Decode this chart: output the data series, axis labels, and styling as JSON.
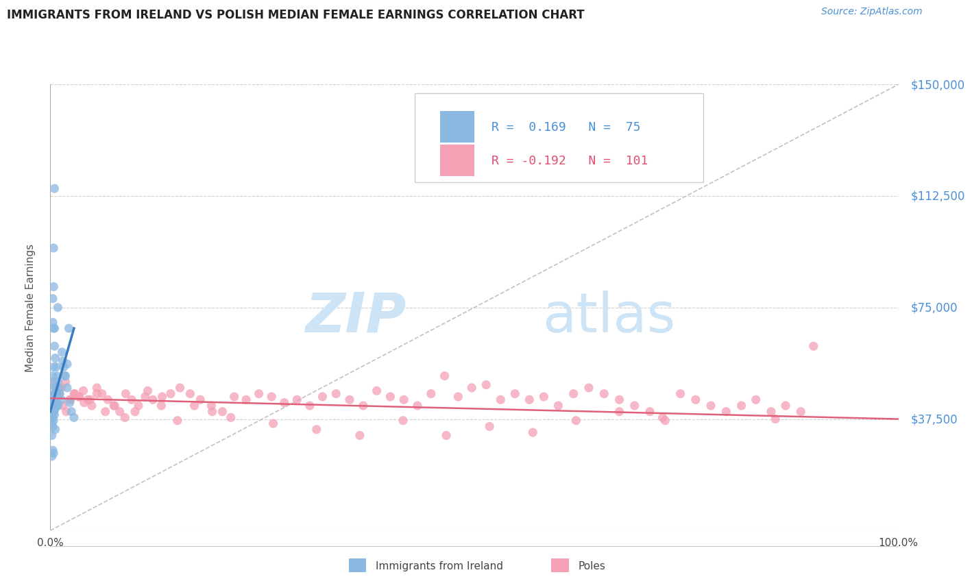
{
  "title": "IMMIGRANTS FROM IRELAND VS POLISH MEDIAN FEMALE EARNINGS CORRELATION CHART",
  "source": "Source: ZipAtlas.com",
  "ylabel": "Median Female Earnings",
  "xlim": [
    0.0,
    1.0
  ],
  "ylim": [
    0,
    150000
  ],
  "yticks": [
    37500,
    75000,
    112500,
    150000
  ],
  "ytick_labels": [
    "$37,500",
    "$75,000",
    "$112,500",
    "$150,000"
  ],
  "ireland_color": "#8ab8e0",
  "ireland_color_dark": "#3a7abf",
  "poles_color": "#f4a0b5",
  "poles_color_dark": "#e0607a",
  "legend_ireland_label": "Immigrants from Ireland",
  "legend_poles_label": "Poles",
  "ireland_R": 0.169,
  "ireland_N": 75,
  "poles_R": -0.192,
  "poles_N": 101,
  "accent_blue": "#4a90d9",
  "accent_pink": "#e05070",
  "background_color": "#ffffff",
  "grid_color": "#cccccc",
  "title_color": "#222222",
  "watermark_zip": "ZIP",
  "watermark_atlas": "atlas",
  "watermark_color": "#cce4f5",
  "ireland_scatter_x": [
    0.003,
    0.004,
    0.005,
    0.006,
    0.002,
    0.004,
    0.005,
    0.006,
    0.007,
    0.008,
    0.003,
    0.004,
    0.005,
    0.004,
    0.006,
    0.003,
    0.003,
    0.006,
    0.009,
    0.01,
    0.007,
    0.005,
    0.003,
    0.004,
    0.003,
    0.004,
    0.005,
    0.006,
    0.007,
    0.008,
    0.004,
    0.003,
    0.002,
    0.005,
    0.003,
    0.004,
    0.005,
    0.006,
    0.002,
    0.003,
    0.004,
    0.002,
    0.003,
    0.004,
    0.005,
    0.006,
    0.003,
    0.004,
    0.002,
    0.006,
    0.009,
    0.011,
    0.013,
    0.016,
    0.018,
    0.02,
    0.022,
    0.002,
    0.003,
    0.004,
    0.003,
    0.004,
    0.005,
    0.006,
    0.007,
    0.008,
    0.009,
    0.011,
    0.014,
    0.015,
    0.017,
    0.02,
    0.023,
    0.025,
    0.028
  ],
  "ireland_scatter_y": [
    42000,
    95000,
    115000,
    48000,
    38000,
    44000,
    46000,
    42000,
    42000,
    43000,
    78000,
    82000,
    68000,
    55000,
    46000,
    50000,
    52000,
    48000,
    75000,
    48000,
    43000,
    46000,
    42000,
    44000,
    41000,
    43000,
    45000,
    42000,
    44000,
    46000,
    42000,
    40000,
    38000,
    41000,
    43000,
    40000,
    42000,
    44000,
    36000,
    38000,
    40000,
    42000,
    35000,
    37000,
    39000,
    41000,
    42000,
    44000,
    32000,
    34000,
    42000,
    46000,
    44000,
    55000,
    52000,
    56000,
    68000,
    25000,
    27000,
    26000,
    70000,
    68000,
    62000,
    58000,
    55000,
    52000,
    50000,
    46000,
    60000,
    57000,
    52000,
    48000,
    43000,
    40000,
    38000
  ],
  "poles_scatter_x": [
    0.003,
    0.007,
    0.011,
    0.015,
    0.019,
    0.024,
    0.029,
    0.034,
    0.039,
    0.044,
    0.049,
    0.055,
    0.061,
    0.068,
    0.075,
    0.082,
    0.089,
    0.096,
    0.104,
    0.112,
    0.121,
    0.131,
    0.142,
    0.153,
    0.165,
    0.177,
    0.19,
    0.203,
    0.217,
    0.231,
    0.246,
    0.261,
    0.276,
    0.291,
    0.306,
    0.321,
    0.337,
    0.353,
    0.369,
    0.385,
    0.401,
    0.417,
    0.433,
    0.449,
    0.465,
    0.481,
    0.497,
    0.514,
    0.531,
    0.548,
    0.565,
    0.582,
    0.599,
    0.617,
    0.635,
    0.653,
    0.671,
    0.689,
    0.707,
    0.725,
    0.743,
    0.761,
    0.779,
    0.797,
    0.815,
    0.832,
    0.85,
    0.867,
    0.885,
    0.003,
    0.008,
    0.013,
    0.018,
    0.023,
    0.028,
    0.034,
    0.04,
    0.047,
    0.055,
    0.065,
    0.076,
    0.088,
    0.1,
    0.115,
    0.132,
    0.15,
    0.17,
    0.191,
    0.213,
    0.263,
    0.314,
    0.365,
    0.416,
    0.467,
    0.518,
    0.569,
    0.62,
    0.671,
    0.722,
    0.855,
    0.9
  ],
  "poles_scatter_y": [
    44000,
    46000,
    48000,
    42000,
    40000,
    44000,
    46000,
    45000,
    47000,
    44000,
    42000,
    48000,
    46000,
    44000,
    42000,
    40000,
    46000,
    44000,
    42000,
    45000,
    44000,
    42000,
    46000,
    48000,
    46000,
    44000,
    42000,
    40000,
    45000,
    44000,
    46000,
    45000,
    43000,
    44000,
    42000,
    45000,
    46000,
    44000,
    42000,
    47000,
    45000,
    44000,
    42000,
    46000,
    52000,
    45000,
    48000,
    49000,
    44000,
    46000,
    44000,
    45000,
    42000,
    46000,
    48000,
    46000,
    44000,
    42000,
    40000,
    37000,
    46000,
    44000,
    42000,
    40000,
    42000,
    44000,
    40000,
    42000,
    40000,
    50000,
    45000,
    48000,
    50000,
    44000,
    46000,
    45000,
    43000,
    44000,
    46000,
    40000,
    42000,
    38000,
    40000,
    47000,
    45000,
    37000,
    42000,
    40000,
    38000,
    36000,
    34000,
    32000,
    37000,
    32000,
    35000,
    33000,
    37000,
    40000,
    38000,
    37500,
    62000
  ]
}
